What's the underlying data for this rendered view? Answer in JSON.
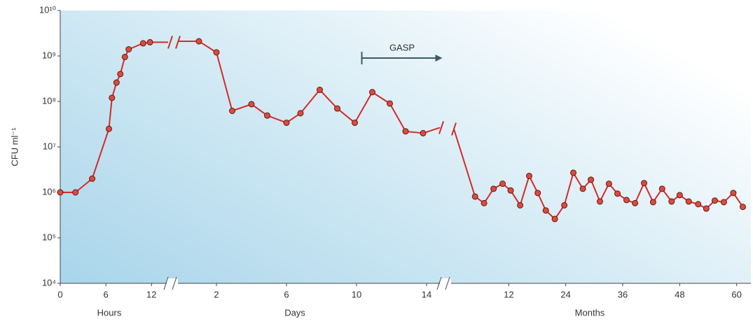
{
  "chart_data": {
    "type": "line",
    "ylabel": "CFU ml⁻¹",
    "log_y": true,
    "ylim": [
      10000,
      10000000000
    ],
    "yticks": [
      {
        "value": 10000,
        "label": "10⁴"
      },
      {
        "value": 100000,
        "label": "10⁵"
      },
      {
        "value": 1000000,
        "label": "10⁶"
      },
      {
        "value": 10000000,
        "label": "10⁷"
      },
      {
        "value": 100000000,
        "label": "10⁸"
      },
      {
        "value": 1000000000,
        "label": "10⁹"
      },
      {
        "value": 10000000000,
        "label": "10¹⁰"
      }
    ],
    "color": "#d42a2a",
    "marker_color": "#e04a3a",
    "segments": [
      {
        "label": "Hours",
        "xlim": [
          0,
          14
        ],
        "xticks": [
          0,
          6,
          12
        ],
        "x": [
          0,
          2,
          4.2,
          6.4,
          6.8,
          7.4,
          7.9,
          8.5,
          9,
          10.9,
          11.8
        ],
        "values": [
          1000000,
          1000000,
          2000000,
          25000000,
          120000000,
          260000000,
          400000000,
          950000000,
          1400000000,
          1900000000,
          2000000000
        ]
      },
      {
        "label": "Days",
        "xlim": [
          0,
          15
        ],
        "xticks": [
          2,
          6,
          10,
          14
        ],
        "x": [
          1,
          2,
          2.9,
          4,
          4.9,
          6,
          6.8,
          7.9,
          8.9,
          9.9,
          10.9,
          11.9,
          12.8,
          13.8
        ],
        "values": [
          2100000000,
          1200000000,
          62000000,
          87000000,
          49000000,
          34000000,
          55000000,
          180000000,
          70000000,
          34000000,
          160000000,
          90000000,
          22000000,
          20000000
        ],
        "annotation": {
          "text": "GASP",
          "x_start": 10.3,
          "x_end": 14.9,
          "y": 900000000
        }
      },
      {
        "label": "Months",
        "xlim": [
          0,
          63
        ],
        "xticks": [
          12,
          24,
          36,
          48,
          60
        ],
        "x": [
          4.9,
          6.8,
          8.8,
          10.7,
          12.4,
          14.4,
          16.3,
          18.1,
          19.8,
          21.7,
          23.7,
          25.6,
          27.6,
          29.3,
          31.2,
          33.1,
          34.9,
          36.8,
          38.6,
          40.5,
          42.4,
          44.3,
          46.3,
          48,
          49.9,
          51.9,
          53.6,
          55.4,
          57.3,
          59.3,
          61.3
        ],
        "values": [
          810000,
          580000,
          1200000,
          1550000,
          1100000,
          520000,
          2300000,
          970000,
          400000,
          260000,
          520000,
          2700000,
          1200000,
          1900000,
          630000,
          1550000,
          940000,
          680000,
          580000,
          1600000,
          610000,
          1200000,
          630000,
          870000,
          630000,
          550000,
          440000,
          660000,
          610000,
          970000,
          480000
        ]
      }
    ]
  }
}
